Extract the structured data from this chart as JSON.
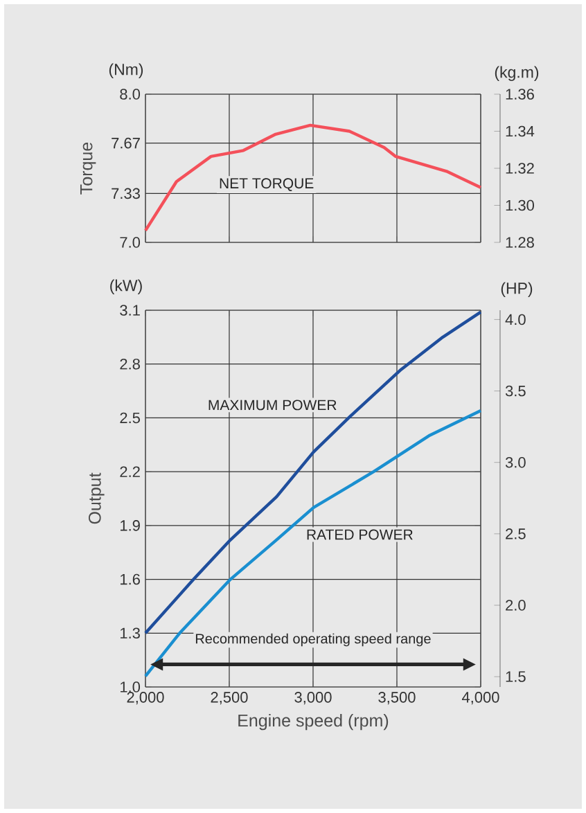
{
  "chart_data": [
    {
      "type": "line",
      "ylabel": "Torque",
      "y2label": "(kg.m)",
      "annotations": [
        "(Nm)"
      ],
      "xlim": [
        2000,
        4000
      ],
      "xticks": [
        {
          "value": 2000,
          "label": null
        },
        {
          "value": 2500,
          "label": null
        },
        {
          "value": 3000,
          "label": null
        },
        {
          "value": 3500,
          "label": null
        },
        {
          "value": 4000,
          "label": null
        }
      ],
      "ylim": [
        7.0,
        8.0
      ],
      "yticks": [
        {
          "value": 7.0,
          "label": "7.0"
        },
        {
          "value": 7.33,
          "label": "7.33"
        },
        {
          "value": 7.67,
          "label": "7.67"
        },
        {
          "value": 8.0,
          "label": "8.0"
        }
      ],
      "y2lim": [
        1.28,
        1.36
      ],
      "y2ticks": [
        {
          "value": 1.28,
          "label": "1.28"
        },
        {
          "value": 1.3,
          "label": "1.30"
        },
        {
          "value": 1.32,
          "label": "1.32"
        },
        {
          "value": 1.34,
          "label": "1.34"
        },
        {
          "value": 1.36,
          "label": "1.36"
        }
      ],
      "grid": true,
      "tick_labels": "y",
      "series": [
        {
          "name": "NET TORQUE",
          "color": "#f4505a",
          "x": [
            2000,
            2185,
            2391,
            2584,
            2777,
            2983,
            3217,
            3424,
            3493,
            3796,
            4000
          ],
          "values": [
            7.08,
            7.41,
            7.58,
            7.62,
            7.73,
            7.79,
            7.75,
            7.64,
            7.58,
            7.48,
            7.37
          ]
        }
      ]
    },
    {
      "type": "line",
      "ylabel": "Output",
      "y2label": "(HP)",
      "xlabel": "Engine speed (rpm)",
      "annotations": [
        "(kW)",
        "Recommended operating speed range"
      ],
      "xlim": [
        2000,
        4000
      ],
      "xticks": [
        {
          "value": 2000,
          "label": "2,000"
        },
        {
          "value": 2500,
          "label": "2,500"
        },
        {
          "value": 3000,
          "label": "3,000"
        },
        {
          "value": 3500,
          "label": "3,500"
        },
        {
          "value": 4000,
          "label": "4,000"
        }
      ],
      "ylim": [
        1.0,
        3.1
      ],
      "yticks": [
        {
          "value": 1.0,
          "label": "1.0"
        },
        {
          "value": 1.3,
          "label": "1.3"
        },
        {
          "value": 1.6,
          "label": "1.6"
        },
        {
          "value": 1.9,
          "label": "1.9"
        },
        {
          "value": 2.2,
          "label": "2.2"
        },
        {
          "value": 2.5,
          "label": "2.5"
        },
        {
          "value": 2.8,
          "label": "2.8"
        },
        {
          "value": 3.1,
          "label": "3.1"
        }
      ],
      "y2lim": [
        1.428,
        4.065
      ],
      "y2ticks": [
        {
          "value": 1.5,
          "label": "1.5"
        },
        {
          "value": 2.0,
          "label": "2.0"
        },
        {
          "value": 2.5,
          "label": "2.5"
        },
        {
          "value": 3.0,
          "label": "3.0"
        },
        {
          "value": 3.5,
          "label": "3.5"
        },
        {
          "value": 4.0,
          "label": "4.0"
        }
      ],
      "grid": true,
      "series": [
        {
          "name": "MAXIMUM POWER",
          "color": "#1f4e9c",
          "x": [
            2000,
            2287,
            2507,
            2782,
            3003,
            3223,
            3526,
            3774,
            4000
          ],
          "values": [
            1.3,
            1.6,
            1.82,
            2.06,
            2.31,
            2.51,
            2.77,
            2.95,
            3.09
          ]
        },
        {
          "name": "RATED POWER",
          "color": "#1a8fd0",
          "x": [
            2000,
            2204,
            2507,
            2782,
            3003,
            3361,
            3691,
            4000
          ],
          "values": [
            1.06,
            1.3,
            1.6,
            1.82,
            2.0,
            2.2,
            2.4,
            2.54
          ]
        }
      ]
    }
  ]
}
